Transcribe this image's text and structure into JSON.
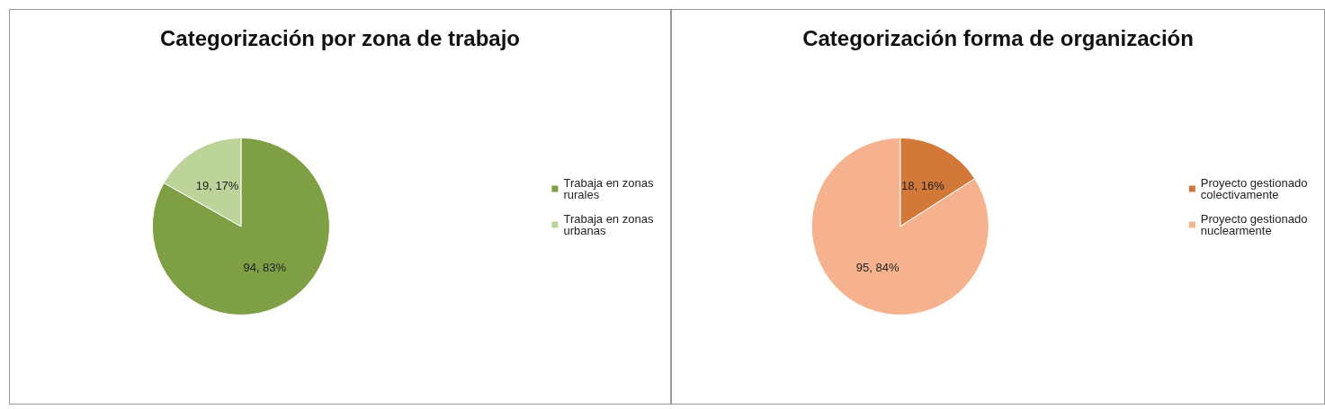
{
  "chart_data": [
    {
      "type": "pie",
      "title": "Categorización por zona de trabajo",
      "categories": [
        "Trabaja en zonas rurales",
        "Trabaja en zonas urbanas"
      ],
      "values": [
        94,
        19
      ],
      "colors": [
        "#7f9f45",
        "#bcd39a"
      ],
      "value_labels": [
        "94, 83%",
        "19, 17%"
      ],
      "legend": "right"
    },
    {
      "type": "pie",
      "title": "Categorización forma de organización",
      "categories": [
        "Proyecto gestionado colectivamente",
        "Proyecto gestionado nuclearmente"
      ],
      "values": [
        18,
        95
      ],
      "colors": [
        "#d2793a",
        "#f6b28e"
      ],
      "value_labels": [
        "18, 16%",
        "95, 84%"
      ],
      "legend": "right"
    }
  ]
}
